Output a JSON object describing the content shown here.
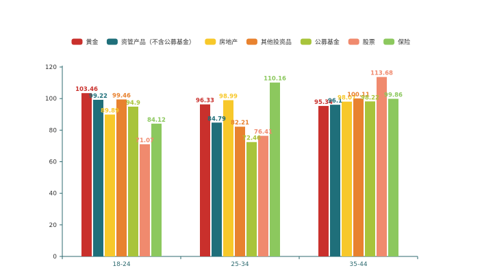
{
  "chart_data": {
    "type": "bar",
    "categories": [
      "18-24",
      "25-34",
      "35-44"
    ],
    "series": [
      {
        "name": "黄金",
        "color": "#c9302c",
        "values": [
          103.46,
          96.33,
          95.34
        ]
      },
      {
        "name": "资管产品（不含公募基金）",
        "color": "#1f6f7a",
        "values": [
          99.22,
          84.79,
          96.1
        ]
      },
      {
        "name": "房地产",
        "color": "#f7c82a",
        "values": [
          89.89,
          98.99,
          98.07
        ]
      },
      {
        "name": "其他投资品",
        "color": "#e8822f",
        "values": [
          99.46,
          82.21,
          100.11
        ]
      },
      {
        "name": "公募基金",
        "color": "#a8c43b",
        "values": [
          94.9,
          72.46,
          98.22
        ]
      },
      {
        "name": "股票",
        "color": "#f08a6e",
        "values": [
          71.07,
          76.41,
          113.68
        ]
      },
      {
        "name": "保险",
        "color": "#8cc85e",
        "values": [
          84.12,
          110.16,
          99.86
        ]
      }
    ],
    "ylim": [
      0,
      120
    ],
    "yticks": [
      0,
      20,
      40,
      60,
      80,
      100,
      120
    ],
    "legend_position": "top",
    "grid": false
  }
}
